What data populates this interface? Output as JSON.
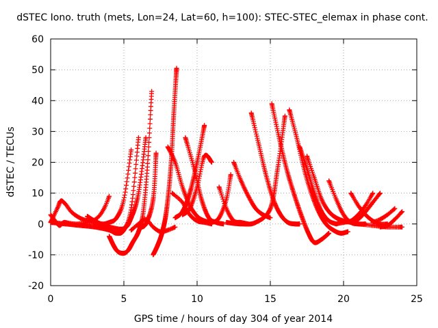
{
  "chart_data": {
    "type": "scatter",
    "title": "dSTEC Iono. truth (mets, Lon=24, Lat=60, h=100): STEC-STEC_elemax in phase cont.",
    "xlabel": "GPS time / hours of day 304 of year 2014",
    "ylabel": "dSTEC  / TECUs",
    "xlim": [
      0,
      25
    ],
    "ylim": [
      -20,
      60
    ],
    "xticks": [
      0,
      5,
      10,
      15,
      20,
      25
    ],
    "yticks": [
      -20,
      -10,
      0,
      10,
      20,
      30,
      40,
      50,
      60
    ],
    "grid": true,
    "marker": "+",
    "series": [
      {
        "color": "#ff0000",
        "marker": "+",
        "x": [
          0.0,
          0.3,
          0.6,
          0.9,
          1.3,
          1.8,
          2.3,
          2.8,
          3.3,
          3.7,
          4.0
        ],
        "y": [
          3.0,
          1.0,
          -0.5,
          0.5,
          0.2,
          0.0,
          0.3,
          0.8,
          2.5,
          5.5,
          9.0
        ]
      },
      {
        "color": "#ff0000",
        "marker": "+",
        "x": [
          0.0,
          0.2,
          0.5,
          0.7,
          1.0,
          1.4,
          1.8,
          2.2,
          2.6,
          3.0
        ],
        "y": [
          0.5,
          2.5,
          5.5,
          7.5,
          6.5,
          4.0,
          2.5,
          1.5,
          1.0,
          0.5
        ]
      },
      {
        "color": "#ff0000",
        "marker": "+",
        "x": [
          2.5,
          3.0,
          3.5,
          4.0,
          4.5,
          5.0,
          5.5
        ],
        "y": [
          2.5,
          1.0,
          0.0,
          0.5,
          2.0,
          8.0,
          24.0
        ]
      },
      {
        "color": "#ff0000",
        "marker": "+",
        "x": [
          0.0,
          1.0,
          2.0,
          3.0,
          4.0,
          4.5,
          5.0,
          5.5,
          6.0
        ],
        "y": [
          0.5,
          0.0,
          -0.5,
          -1.0,
          -2.0,
          -3.0,
          -2.0,
          5.0,
          28.0
        ]
      },
      {
        "color": "#ff0000",
        "marker": "+",
        "x": [
          4.0,
          4.3,
          4.6,
          5.0,
          5.3,
          5.6,
          6.0,
          6.3,
          6.6,
          6.9
        ],
        "y": [
          -4.0,
          -7.0,
          -9.0,
          -9.5,
          -8.5,
          -6.0,
          -2.5,
          3.0,
          18.0,
          43.0
        ]
      },
      {
        "color": "#ff0000",
        "marker": "+",
        "x": [
          3.0,
          4.0,
          5.0,
          5.5,
          6.0,
          6.5
        ],
        "y": [
          0.0,
          -1.0,
          -1.5,
          2.0,
          10.0,
          28.0
        ]
      },
      {
        "color": "#ff0000",
        "marker": "+",
        "x": [
          5.5,
          6.0,
          6.5,
          7.0,
          7.5,
          8.0,
          8.5
        ],
        "y": [
          -2.0,
          0.0,
          1.5,
          -1.0,
          -2.5,
          -2.0,
          -1.0
        ]
      },
      {
        "color": "#ff0000",
        "marker": "+",
        "x": [
          7.0,
          7.3,
          7.6,
          7.9,
          8.2,
          8.4,
          8.6
        ],
        "y": [
          -10.0,
          -7.0,
          -3.0,
          4.0,
          18.0,
          35.0,
          50.5
        ]
      },
      {
        "color": "#ff0000",
        "marker": "+",
        "x": [
          6.0,
          6.5,
          7.0,
          7.2
        ],
        "y": [
          -1.0,
          0.0,
          8.0,
          23.0
        ]
      },
      {
        "color": "#ff0000",
        "marker": "+",
        "x": [
          8.0,
          8.5,
          9.0,
          9.5,
          10.0,
          10.5,
          11.0
        ],
        "y": [
          25.0,
          20.0,
          12.0,
          6.0,
          2.5,
          1.0,
          0.5
        ]
      },
      {
        "color": "#ff0000",
        "marker": "+",
        "x": [
          8.3,
          9.0,
          9.5,
          10.0,
          10.5,
          11.0
        ],
        "y": [
          10.0,
          7.0,
          3.0,
          1.0,
          0.5,
          0.0
        ]
      },
      {
        "color": "#ff0000",
        "marker": "+",
        "x": [
          8.5,
          9.0,
          9.5,
          10.0,
          10.5
        ],
        "y": [
          2.0,
          4.0,
          10.0,
          20.0,
          32.0
        ]
      },
      {
        "color": "#ff0000",
        "marker": "+",
        "x": [
          9.0,
          9.5,
          10.0,
          10.5,
          11.0
        ],
        "y": [
          3.0,
          5.0,
          12.0,
          22.0,
          20.0
        ]
      },
      {
        "color": "#ff0000",
        "marker": "+",
        "x": [
          9.2,
          9.8,
          10.3,
          10.8,
          11.3,
          11.8
        ],
        "y": [
          28.0,
          18.0,
          8.0,
          2.0,
          0.5,
          0.0
        ]
      },
      {
        "color": "#ff0000",
        "marker": "+",
        "x": [
          10.5,
          11.0,
          11.5,
          12.0,
          12.3
        ],
        "y": [
          1.0,
          0.5,
          2.0,
          8.0,
          16.0
        ]
      },
      {
        "color": "#ff0000",
        "marker": "+",
        "x": [
          11.5,
          12.0,
          12.5,
          13.0,
          13.5
        ],
        "y": [
          12.0,
          5.0,
          1.0,
          0.5,
          0.0
        ]
      },
      {
        "color": "#ff0000",
        "marker": "+",
        "x": [
          12.5,
          13.0,
          13.5,
          14.0,
          14.5,
          15.0
        ],
        "y": [
          20.0,
          14.0,
          9.0,
          5.0,
          3.0,
          2.0
        ]
      },
      {
        "color": "#ff0000",
        "marker": "+",
        "x": [
          12.0,
          13.0,
          14.0,
          15.0,
          15.5,
          16.0
        ],
        "y": [
          0.5,
          0.0,
          0.5,
          5.0,
          18.0,
          35.0
        ]
      },
      {
        "color": "#ff0000",
        "marker": "+",
        "x": [
          13.7,
          14.2,
          14.7,
          15.2,
          15.7,
          16.2,
          16.7,
          17.0
        ],
        "y": [
          36.0,
          26.0,
          16.0,
          8.0,
          3.0,
          0.5,
          0.0,
          0.0
        ]
      },
      {
        "color": "#ff0000",
        "marker": "+",
        "x": [
          15.1,
          15.6,
          16.1,
          16.6,
          17.1,
          17.6,
          18.0,
          18.5,
          19.0
        ],
        "y": [
          39.0,
          28.0,
          18.0,
          10.0,
          3.0,
          -3.0,
          -6.0,
          -5.0,
          -3.0
        ]
      },
      {
        "color": "#ff0000",
        "marker": "+",
        "x": [
          16.3,
          16.8,
          17.3,
          17.8,
          18.3,
          18.8,
          19.3,
          19.8,
          20.3
        ],
        "y": [
          37.0,
          28.0,
          18.0,
          10.0,
          4.0,
          0.0,
          -2.0,
          -3.0,
          -2.5
        ]
      },
      {
        "color": "#ff0000",
        "marker": "+",
        "x": [
          17.0,
          17.5,
          18.0,
          18.5,
          19.0,
          19.5
        ],
        "y": [
          25.0,
          18.0,
          10.0,
          4.0,
          1.0,
          0.0
        ]
      },
      {
        "color": "#ff0000",
        "marker": "+",
        "x": [
          17.5,
          18.0,
          18.5,
          19.0,
          19.5,
          20.0,
          20.5
        ],
        "y": [
          22.0,
          15.0,
          8.0,
          4.0,
          2.0,
          1.0,
          0.5
        ]
      },
      {
        "color": "#ff0000",
        "marker": "+",
        "x": [
          19.0,
          19.5,
          20.0,
          20.5,
          21.0,
          21.5
        ],
        "y": [
          14.0,
          8.0,
          3.0,
          0.5,
          0.0,
          0.0
        ]
      },
      {
        "color": "#ff0000",
        "marker": "+",
        "x": [
          19.5,
          20.0,
          20.5,
          21.0,
          21.5,
          22.0
        ],
        "y": [
          0.0,
          0.5,
          1.0,
          3.0,
          6.0,
          10.0
        ]
      },
      {
        "color": "#ff0000",
        "marker": "+",
        "x": [
          20.5,
          21.0,
          21.5,
          22.0,
          22.5,
          23.0
        ],
        "y": [
          10.0,
          6.0,
          3.0,
          1.0,
          0.0,
          0.0
        ]
      },
      {
        "color": "#ff0000",
        "marker": "+",
        "x": [
          20.5,
          21.0,
          21.5,
          22.0,
          22.5
        ],
        "y": [
          0.5,
          1.5,
          4.0,
          7.0,
          10.0
        ]
      },
      {
        "color": "#ff0000",
        "marker": "+",
        "x": [
          22.0,
          22.5,
          23.0,
          23.5
        ],
        "y": [
          0.5,
          1.5,
          3.0,
          5.0
        ]
      },
      {
        "color": "#ff0000",
        "marker": "+",
        "x": [
          22.5,
          23.0,
          23.5,
          24.0
        ],
        "y": [
          -1.0,
          -0.5,
          1.5,
          4.0
        ]
      },
      {
        "color": "#ff0000",
        "marker": "+",
        "x": [
          21.0,
          22.0,
          23.0,
          24.0
        ],
        "y": [
          0.0,
          -0.5,
          -1.0,
          -1.0
        ]
      }
    ]
  }
}
